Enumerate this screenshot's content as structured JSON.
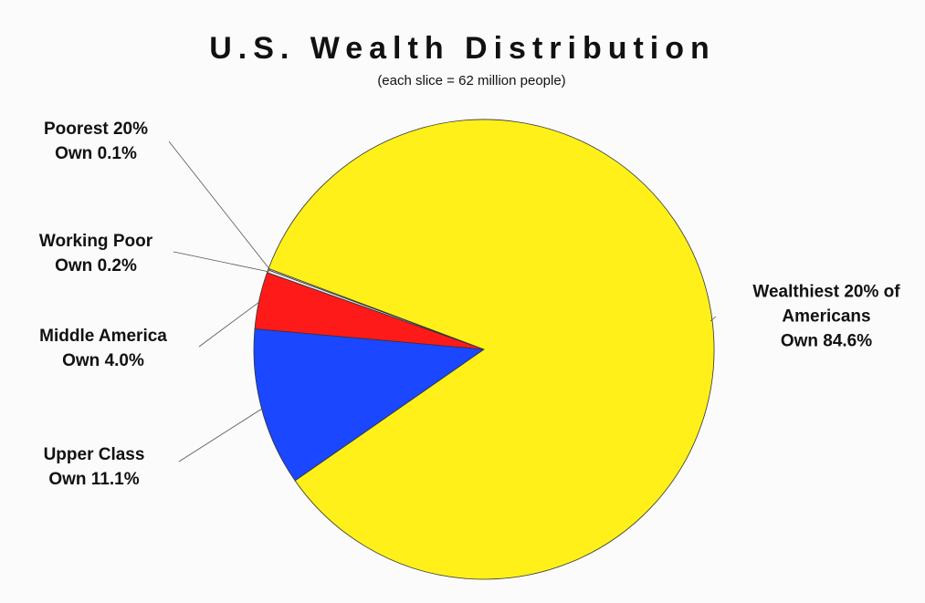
{
  "chart_data": {
    "type": "pie",
    "title": "U.S. Wealth Distribution",
    "subtitle": "(each slice = 62 million people)",
    "categories": [
      "Poorest 20%",
      "Working Poor",
      "Middle America",
      "Upper Class",
      "Wealthiest 20% of Americans"
    ],
    "values": [
      0.1,
      0.2,
      4.0,
      11.1,
      84.6
    ],
    "value_labels": [
      "Own 0.1%",
      "Own 0.2%",
      "Own 4.0%",
      "Own 11.1%",
      "Own 84.6%"
    ],
    "colors": [
      "#ffffff",
      "#eeeeee",
      "#ff1a1a",
      "#1a47ff",
      "#fff01a"
    ]
  }
}
